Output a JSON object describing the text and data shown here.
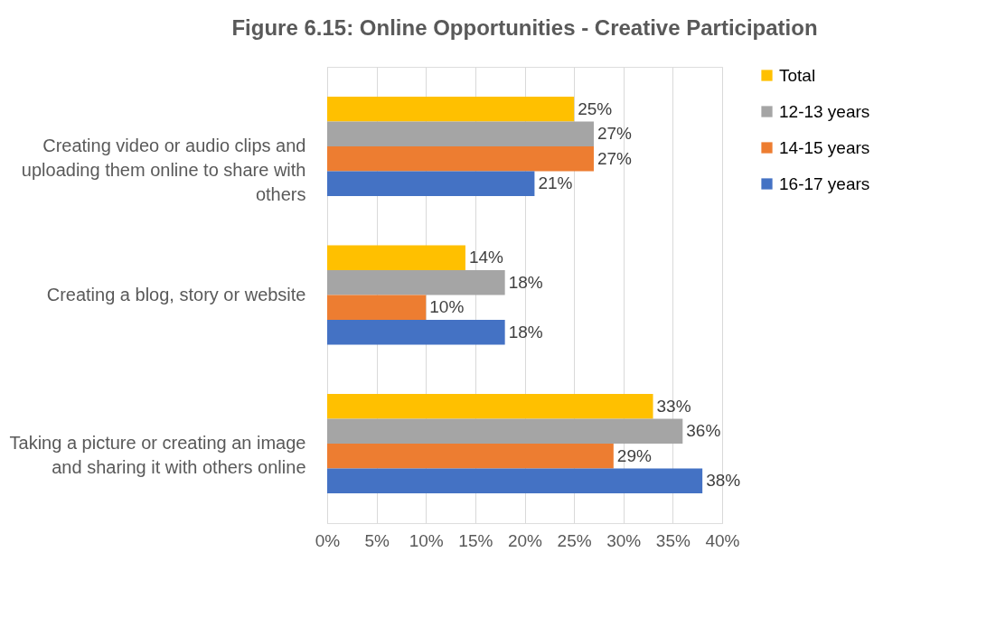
{
  "chart_data": {
    "type": "bar",
    "orientation": "horizontal",
    "title": "Figure 6.15: Online Opportunities - Creative Participation",
    "categories": [
      "Creating video or audio clips and uploading them online to share with others",
      "Creating a blog, story or website",
      "Taking a picture or creating an image and sharing it with others online"
    ],
    "series": [
      {
        "name": "Total",
        "color": "#ffc000",
        "values": [
          25,
          14,
          33
        ],
        "value_labels": [
          "25%",
          "14%",
          "33%"
        ]
      },
      {
        "name": "12-13 years",
        "color": "#a5a5a5",
        "values": [
          27,
          18,
          36
        ],
        "value_labels": [
          "27%",
          "18%",
          "36%"
        ]
      },
      {
        "name": "14-15 years",
        "color": "#ed7d31",
        "values": [
          27,
          10,
          29
        ],
        "value_labels": [
          "27%",
          "10%",
          "29%"
        ]
      },
      {
        "name": "16-17 years",
        "color": "#4472c4",
        "values": [
          21,
          18,
          38
        ],
        "value_labels": [
          "21%",
          "18%",
          "38%"
        ]
      }
    ],
    "xlim": [
      0,
      40
    ],
    "xticks": [
      {
        "value": 0,
        "label": "0%"
      },
      {
        "value": 5,
        "label": "5%"
      },
      {
        "value": 10,
        "label": "10%"
      },
      {
        "value": 15,
        "label": "15%"
      },
      {
        "value": 20,
        "label": "20%"
      },
      {
        "value": 25,
        "label": "25%"
      },
      {
        "value": 30,
        "label": "30%"
      },
      {
        "value": 35,
        "label": "35%"
      },
      {
        "value": 40,
        "label": "40%"
      }
    ],
    "grid": "x",
    "legend": "right"
  }
}
